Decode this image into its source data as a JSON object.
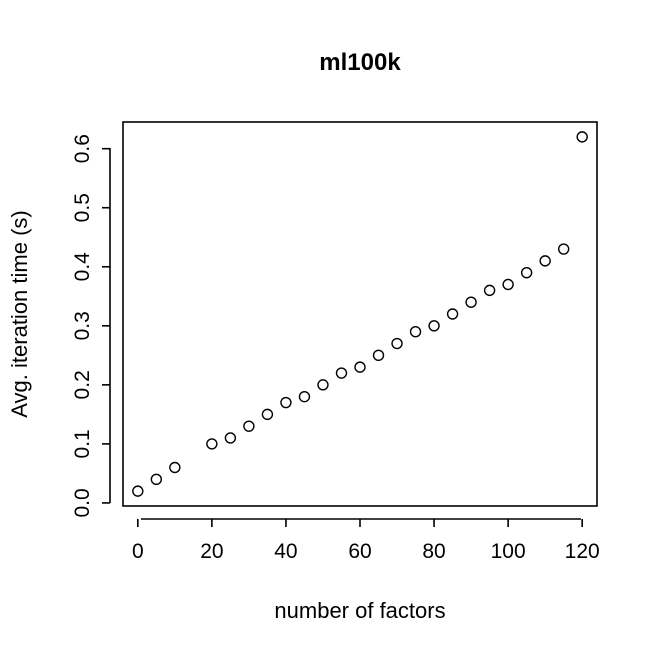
{
  "chart_data": {
    "type": "scatter",
    "title": "ml100k",
    "xlabel": "number of factors",
    "ylabel": "Avg. iteration time (s)",
    "xlim": [
      -4,
      124
    ],
    "ylim": [
      -0.0052,
      0.6452
    ],
    "x_ticks": [
      0,
      20,
      40,
      60,
      80,
      100,
      120
    ],
    "y_ticks": [
      0.0,
      0.1,
      0.2,
      0.3,
      0.4,
      0.5,
      0.6
    ],
    "x_tick_labels": [
      "0",
      "20",
      "40",
      "60",
      "80",
      "100",
      "120"
    ],
    "y_tick_labels": [
      "0.0",
      "0.1",
      "0.2",
      "0.3",
      "0.4",
      "0.5",
      "0.6"
    ],
    "grid": false,
    "marker": "open-circle",
    "points": [
      {
        "x": 0,
        "y": 0.02
      },
      {
        "x": 5,
        "y": 0.04
      },
      {
        "x": 10,
        "y": 0.06
      },
      {
        "x": 20,
        "y": 0.1
      },
      {
        "x": 25,
        "y": 0.11
      },
      {
        "x": 30,
        "y": 0.13
      },
      {
        "x": 35,
        "y": 0.15
      },
      {
        "x": 40,
        "y": 0.17
      },
      {
        "x": 45,
        "y": 0.18
      },
      {
        "x": 50,
        "y": 0.2
      },
      {
        "x": 55,
        "y": 0.22
      },
      {
        "x": 60,
        "y": 0.23
      },
      {
        "x": 65,
        "y": 0.25
      },
      {
        "x": 70,
        "y": 0.27
      },
      {
        "x": 75,
        "y": 0.29
      },
      {
        "x": 80,
        "y": 0.3
      },
      {
        "x": 85,
        "y": 0.32
      },
      {
        "x": 90,
        "y": 0.34
      },
      {
        "x": 95,
        "y": 0.36
      },
      {
        "x": 100,
        "y": 0.37
      },
      {
        "x": 105,
        "y": 0.39
      },
      {
        "x": 110,
        "y": 0.41
      },
      {
        "x": 115,
        "y": 0.43
      },
      {
        "x": 120,
        "y": 0.62
      }
    ]
  }
}
